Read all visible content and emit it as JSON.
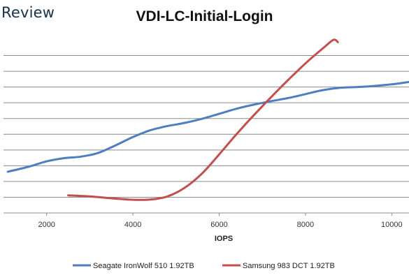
{
  "brand": {
    "text": "Review"
  },
  "chart_data": {
    "type": "line",
    "title": "VDI-LC-Initial-Login",
    "xlabel": "IOPS",
    "ylabel": "",
    "xlim": [
      1000,
      10400
    ],
    "ylim": [
      0,
      11
    ],
    "x_ticks": [
      2000,
      4000,
      6000,
      8000,
      10000
    ],
    "y_gridlines": [
      1,
      2,
      3,
      4,
      5,
      6,
      7,
      8,
      9,
      10
    ],
    "grid": true,
    "legend_position": "bottom",
    "series": [
      {
        "name": "Seagate IronWolf 510 1.92TB",
        "color": "#4f7ec0",
        "x": [
          1100,
          1600,
          2000,
          2400,
          2800,
          3200,
          3600,
          4000,
          4400,
          4800,
          5200,
          5600,
          6000,
          6400,
          6800,
          7200,
          7600,
          8000,
          8400,
          8800,
          9200,
          9600,
          10000,
          10400
        ],
        "y": [
          2.62,
          2.95,
          3.28,
          3.48,
          3.58,
          3.82,
          4.3,
          4.82,
          5.25,
          5.52,
          5.72,
          5.98,
          6.3,
          6.62,
          6.88,
          7.1,
          7.3,
          7.55,
          7.8,
          7.95,
          8.0,
          8.07,
          8.17,
          8.32
        ]
      },
      {
        "name": "Samsung 983 DCT 1.92TB",
        "color": "#c0504d",
        "x": [
          2500,
          3000,
          3500,
          4000,
          4400,
          4800,
          5200,
          5600,
          6000,
          6400,
          6800,
          7200,
          7600,
          8000,
          8400,
          8650,
          8750
        ],
        "y": [
          1.12,
          1.05,
          0.93,
          0.84,
          0.85,
          1.05,
          1.6,
          2.5,
          3.72,
          5.0,
          6.2,
          7.35,
          8.45,
          9.5,
          10.45,
          11.0,
          10.85
        ]
      }
    ]
  }
}
